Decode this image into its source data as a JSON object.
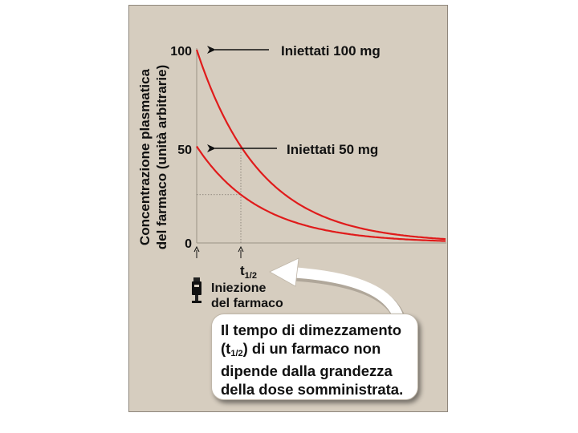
{
  "chart_data": {
    "type": "line",
    "ylabel_line1": "Concentrazione plasmatica",
    "ylabel_line2": "del farmaco (unità arbitrarie)",
    "yticks": [
      "100",
      "50",
      "0"
    ],
    "ylim": [
      0,
      100
    ],
    "series": [
      {
        "name": "Iniettati 100 mg",
        "start": 100,
        "half_life_fraction": 0.5
      },
      {
        "name": "Iniettati 50 mg",
        "start": 50,
        "half_life_fraction": 0.5
      }
    ],
    "half_life_label": "t",
    "half_life_sub": "1/2",
    "injection_label_line1": "Iniezione",
    "injection_label_line2": "del farmaco",
    "colors": {
      "curve": "#e01b1b",
      "background": "#d6cdbf",
      "text": "#111111"
    },
    "grid": false
  },
  "callout": {
    "line1": "Il tempo di dimezzamento",
    "line2_pre": "(t",
    "line2_sub": "1/2",
    "line2_post": ") di un farmaco non",
    "line3": "dipende dalla grandezza",
    "line4": "della dose somministrata."
  }
}
